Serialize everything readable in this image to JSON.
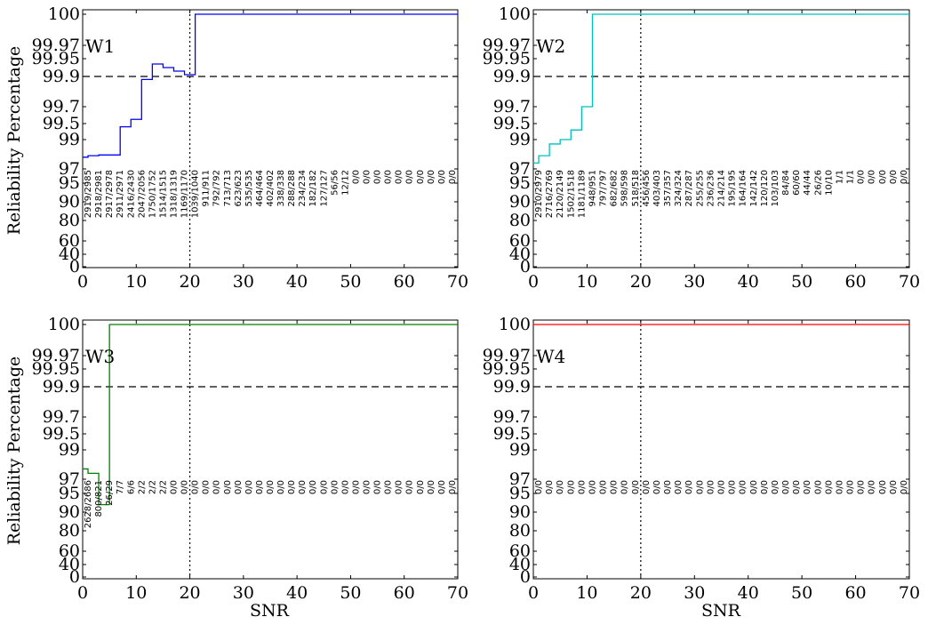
{
  "figure": {
    "ylabel": "Reliability Percentage",
    "xlabel": "SNR"
  },
  "chart_data": [
    {
      "type": "line",
      "title": "W1",
      "color": "#0000ff",
      "xlim": [
        0,
        70
      ],
      "xticks": [
        0,
        10,
        20,
        30,
        40,
        50,
        60,
        70
      ],
      "yticks": [
        "0",
        "40",
        "60",
        "80",
        "90",
        "95",
        "97",
        "99",
        "99.5",
        "99.7",
        "99.9",
        "99.95",
        "99.97",
        "100"
      ],
      "threshold_y": "99.9",
      "vline_x": 20,
      "step_x": [
        0,
        1,
        3,
        7,
        9,
        11,
        13,
        15,
        17,
        19,
        21,
        70
      ],
      "step_y": [
        97.8,
        97.9,
        97.95,
        99.4,
        99.55,
        99.88,
        99.935,
        99.925,
        99.915,
        99.905,
        100,
        100
      ],
      "counts": [
        "2919/2985",
        "2918/2981",
        "2917/2978",
        "2911/2971",
        "2416/2430",
        "2047/2056",
        "1750/1752",
        "1514/1515",
        "1318/1319",
        "1169/1170",
        "1039/1040",
        "911/911",
        "792/792",
        "713/713",
        "623/623",
        "535/535",
        "464/464",
        "402/402",
        "338/338",
        "288/288",
        "234/234",
        "182/182",
        "127/127",
        "56/56",
        "12/12",
        "0/0",
        "0/0",
        "0/0",
        "0/0",
        "0/0",
        "0/0",
        "0/0",
        "0/0",
        "0/0",
        "0/0"
      ]
    },
    {
      "type": "line",
      "title": "W2",
      "color": "#00bfbf",
      "xlim": [
        0,
        70
      ],
      "xticks": [
        0,
        10,
        20,
        30,
        40,
        50,
        60,
        70
      ],
      "yticks": [
        "0",
        "40",
        "60",
        "80",
        "90",
        "95",
        "97",
        "99",
        "99.5",
        "99.7",
        "99.9",
        "99.95",
        "99.97",
        "100"
      ],
      "threshold_y": "99.9",
      "vline_x": 20,
      "step_x": [
        0,
        1,
        3,
        5,
        7,
        9,
        11,
        70
      ],
      "step_y": [
        97.4,
        97.9,
        98.7,
        99.0,
        99.3,
        99.7,
        100,
        100
      ],
      "counts": [
        "2910/2979",
        "2716/2769",
        "2120/2149",
        "1502/1518",
        "1181/1189",
        "948/951",
        "797/797",
        "682/682",
        "598/598",
        "518/518",
        "456/456",
        "403/403",
        "357/357",
        "324/324",
        "287/287",
        "255/255",
        "236/236",
        "214/214",
        "195/195",
        "164/164",
        "142/142",
        "120/120",
        "103/103",
        "84/84",
        "60/60",
        "44/44",
        "26/26",
        "10/10",
        "1/1",
        "1/1",
        "0/0",
        "0/0",
        "0/0",
        "0/0",
        "0/0"
      ]
    },
    {
      "type": "line",
      "title": "W3",
      "color": "#008000",
      "xlim": [
        0,
        70
      ],
      "xticks": [
        0,
        10,
        20,
        30,
        40,
        50,
        60,
        70
      ],
      "yticks": [
        "0",
        "40",
        "60",
        "80",
        "90",
        "95",
        "97",
        "99",
        "99.5",
        "99.7",
        "99.9",
        "99.95",
        "99.97",
        "100"
      ],
      "threshold_y": "99.9",
      "vline_x": 20,
      "step_x": [
        0,
        1,
        3,
        5,
        70
      ],
      "step_y": [
        97.7,
        97.4,
        92,
        100,
        100
      ],
      "counts": [
        "2628/2686",
        "800/821",
        "26/29",
        "7/7",
        "6/6",
        "2/2",
        "2/2",
        "2/2",
        "0/0",
        "0/0",
        "0/0",
        "0/0",
        "0/0",
        "0/0",
        "0/0",
        "0/0",
        "0/0",
        "0/0",
        "0/0",
        "0/0",
        "0/0",
        "0/0",
        "0/0",
        "0/0",
        "0/0",
        "0/0",
        "0/0",
        "0/0",
        "0/0",
        "0/0",
        "0/0",
        "0/0",
        "0/0",
        "0/0",
        "0/0"
      ]
    },
    {
      "type": "line",
      "title": "W4",
      "color": "#ff0000",
      "xlim": [
        0,
        70
      ],
      "xticks": [
        0,
        10,
        20,
        30,
        40,
        50,
        60,
        70
      ],
      "yticks": [
        "0",
        "40",
        "60",
        "80",
        "90",
        "95",
        "97",
        "99",
        "99.5",
        "99.7",
        "99.9",
        "99.95",
        "99.97",
        "100"
      ],
      "threshold_y": "99.9",
      "vline_x": 20,
      "step_x": [
        0,
        70
      ],
      "step_y": [
        100,
        100
      ],
      "counts": [
        "0/0",
        "0/0",
        "0/0",
        "0/0",
        "0/0",
        "0/0",
        "0/0",
        "0/0",
        "0/0",
        "0/0",
        "0/0",
        "0/0",
        "0/0",
        "0/0",
        "0/0",
        "0/0",
        "0/0",
        "0/0",
        "0/0",
        "0/0",
        "0/0",
        "0/0",
        "0/0",
        "0/0",
        "0/0",
        "0/0",
        "0/0",
        "0/0",
        "0/0",
        "0/0",
        "0/0",
        "0/0",
        "0/0",
        "0/0",
        "0/0"
      ]
    }
  ]
}
